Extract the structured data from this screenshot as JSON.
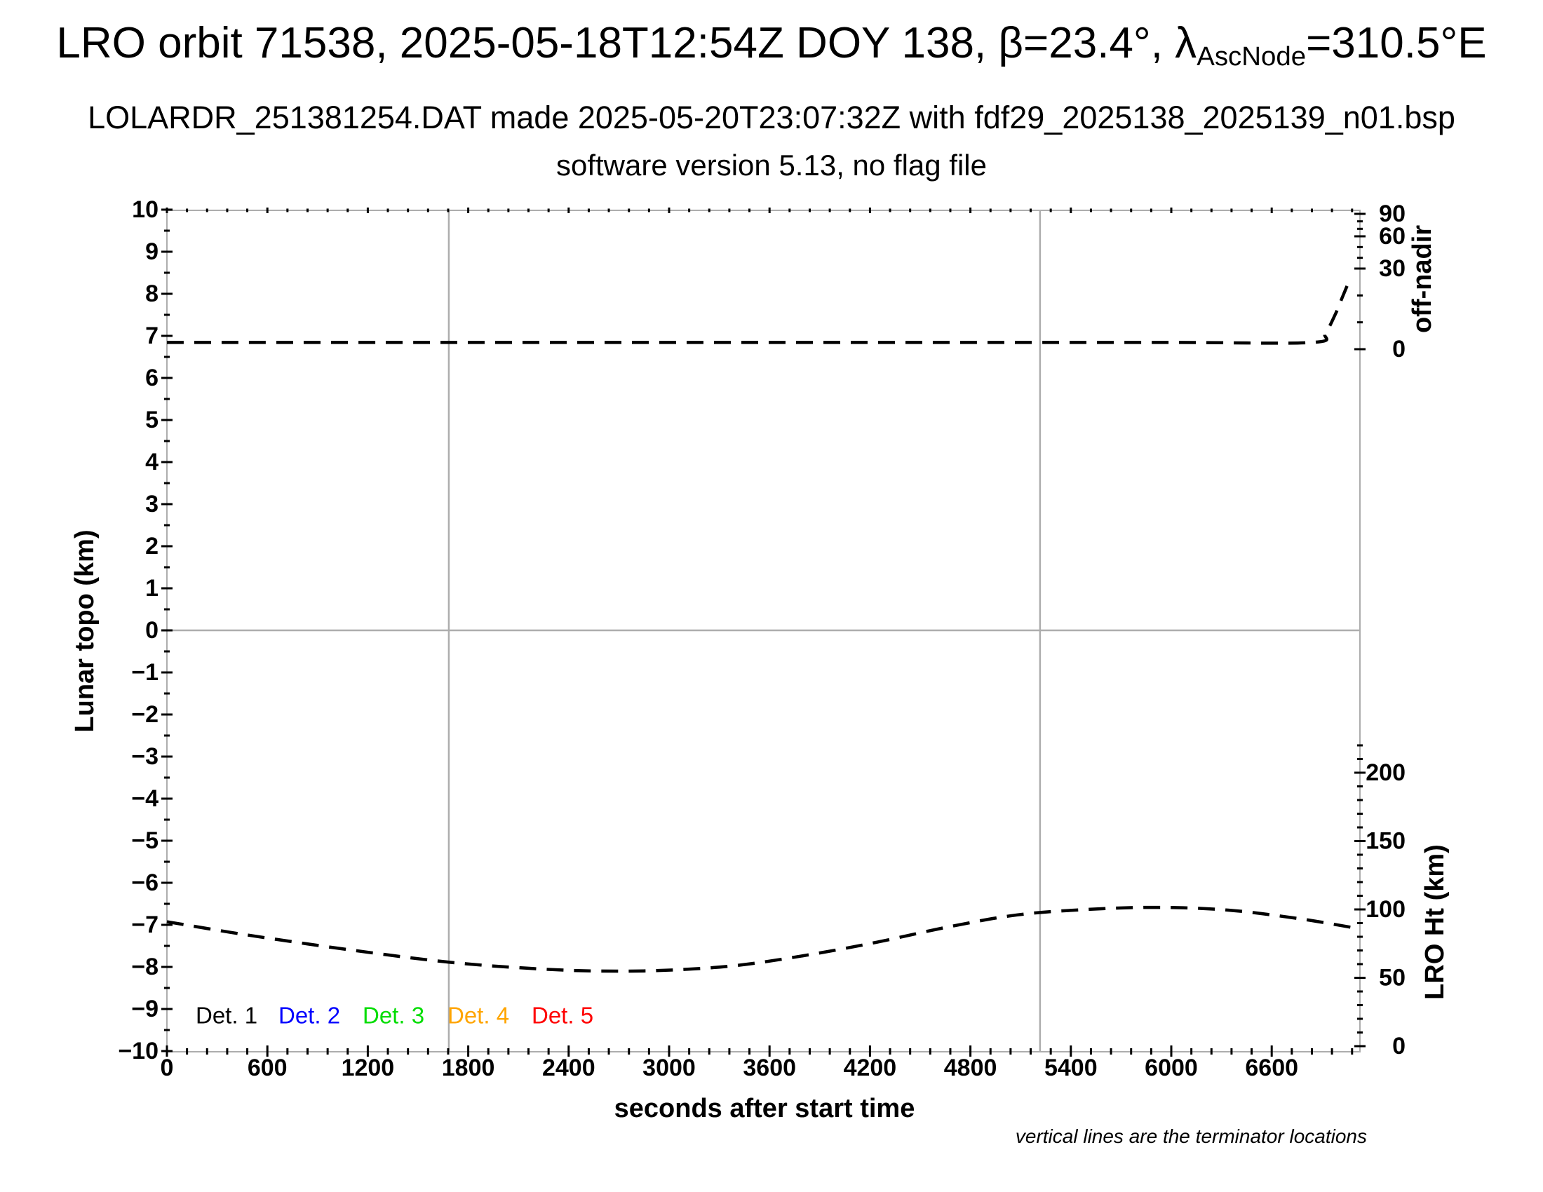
{
  "title": {
    "line1_pre": "LRO orbit 71538, 2025-05-18T12:54Z DOY 138, β=23.4°, λ",
    "line1_sub": "AscNode",
    "line1_post": "=310.5°E",
    "line2": "LOLARDR_251381254.DAT made 2025-05-20T23:07:32Z with fdf29_2025138_2025139_n01.bsp",
    "line3": "software version 5.13, no flag file"
  },
  "footnote": "vertical lines are the terminator locations",
  "colors": {
    "grid_gray": "#adadad",
    "curve_black": "#000000"
  },
  "axes": {
    "x": {
      "label": "seconds after start time",
      "range": [
        0,
        7127
      ],
      "minor_step": 120,
      "ticks": [
        {
          "v": 0,
          "label": "0"
        },
        {
          "v": 600,
          "label": "600"
        },
        {
          "v": 1200,
          "label": "1200"
        },
        {
          "v": 1800,
          "label": "1800"
        },
        {
          "v": 2400,
          "label": "2400"
        },
        {
          "v": 3000,
          "label": "3000"
        },
        {
          "v": 3600,
          "label": "3600"
        },
        {
          "v": 4200,
          "label": "4200"
        },
        {
          "v": 4800,
          "label": "4800"
        },
        {
          "v": 5400,
          "label": "5400"
        },
        {
          "v": 6000,
          "label": "6000"
        },
        {
          "v": 6600,
          "label": "6600"
        }
      ]
    },
    "y_left": {
      "label": "Lunar topo (km)",
      "range": [
        -10,
        10
      ],
      "minor_step": 0.5,
      "ticks": [
        {
          "v": 10,
          "label": "10"
        },
        {
          "v": 9,
          "label": "9"
        },
        {
          "v": 8,
          "label": "8"
        },
        {
          "v": 7,
          "label": "7"
        },
        {
          "v": 6,
          "label": "6"
        },
        {
          "v": 5,
          "label": "5"
        },
        {
          "v": 4,
          "label": "4"
        },
        {
          "v": 3,
          "label": "3"
        },
        {
          "v": 2,
          "label": "2"
        },
        {
          "v": 1,
          "label": "1"
        },
        {
          "v": 0,
          "label": "0"
        },
        {
          "v": -1,
          "label": "−1"
        },
        {
          "v": -2,
          "label": "−2"
        },
        {
          "v": -3,
          "label": "−3"
        },
        {
          "v": -4,
          "label": "−4"
        },
        {
          "v": -5,
          "label": "−5"
        },
        {
          "v": -6,
          "label": "−6"
        },
        {
          "v": -7,
          "label": "−7"
        },
        {
          "v": -8,
          "label": "−8"
        },
        {
          "v": -9,
          "label": "−9"
        },
        {
          "v": -10,
          "label": "−10"
        }
      ]
    },
    "y_right_top": {
      "label": "off-nadir",
      "minor_step": 10,
      "ticks": [
        {
          "v": 90,
          "label": "90"
        },
        {
          "v": 60,
          "label": "60"
        },
        {
          "v": 30,
          "label": "30"
        },
        {
          "v": 0,
          "label": "0"
        }
      ]
    },
    "y_right_bottom": {
      "label": "LRO Ht (km)",
      "minor_step": 10,
      "minor_max": 220,
      "ticks": [
        {
          "v": 200,
          "label": "200"
        },
        {
          "v": 150,
          "label": "150"
        },
        {
          "v": 100,
          "label": "100"
        },
        {
          "v": 50,
          "label": "50"
        },
        {
          "v": 0,
          "label": "0"
        }
      ]
    }
  },
  "legend": {
    "items": [
      {
        "label": "Det. 1",
        "color": "#000000"
      },
      {
        "label": "Det. 2",
        "color": "#0000ff"
      },
      {
        "label": "Det. 3",
        "color": "#00dd00"
      },
      {
        "label": "Det. 4",
        "color": "#ffa500"
      },
      {
        "label": "Det. 5",
        "color": "#ff0000"
      }
    ]
  },
  "chart_data": {
    "type": "line",
    "title": "LRO orbit 71538, 2025-05-18T12:54Z DOY 138, beta=23.4deg, lambda_AscNode=310.5degE",
    "xlabel": "seconds after start time",
    "x_range": [
      0,
      7127
    ],
    "grid": false,
    "terminator_lines_x": [
      1684,
      5216
    ],
    "zero_topo_gridline": 0,
    "y_axes": {
      "left": {
        "label": "Lunar topo (km)",
        "range": [
          -10,
          10
        ],
        "tick_step": 1
      },
      "right_top": {
        "label": "off-nadir",
        "ticks": [
          0,
          30,
          60,
          90
        ]
      },
      "right_bottom": {
        "label": "LRO Ht (km)",
        "ticks": [
          0,
          50,
          100,
          150,
          200
        ]
      }
    },
    "series": [
      {
        "name": "spacecraft off-nadir angle",
        "axis": "off-nadir (deg)",
        "style": "dashed",
        "color": "#000000",
        "x": [
          0,
          1500,
          3000,
          4500,
          6000,
          6840,
          6920,
          6980,
          7020,
          7050
        ],
        "values": [
          2.5,
          2.5,
          2.5,
          2.5,
          2.5,
          2.5,
          6,
          13,
          19,
          23.5
        ]
      },
      {
        "name": "LRO height above surface",
        "axis": "LRO Ht (km)",
        "style": "dashed",
        "color": "#000000",
        "x": [
          0,
          470,
          1100,
          1680,
          2150,
          2560,
          2980,
          3400,
          3820,
          4240,
          4660,
          5080,
          5500,
          5920,
          6340,
          6750,
          7070
        ],
        "values": [
          91,
          81.5,
          70.3,
          61.5,
          57,
          55,
          55.5,
          59,
          66.5,
          76,
          87,
          96,
          100,
          101.5,
          99.5,
          93.5,
          87
        ]
      }
    ]
  }
}
